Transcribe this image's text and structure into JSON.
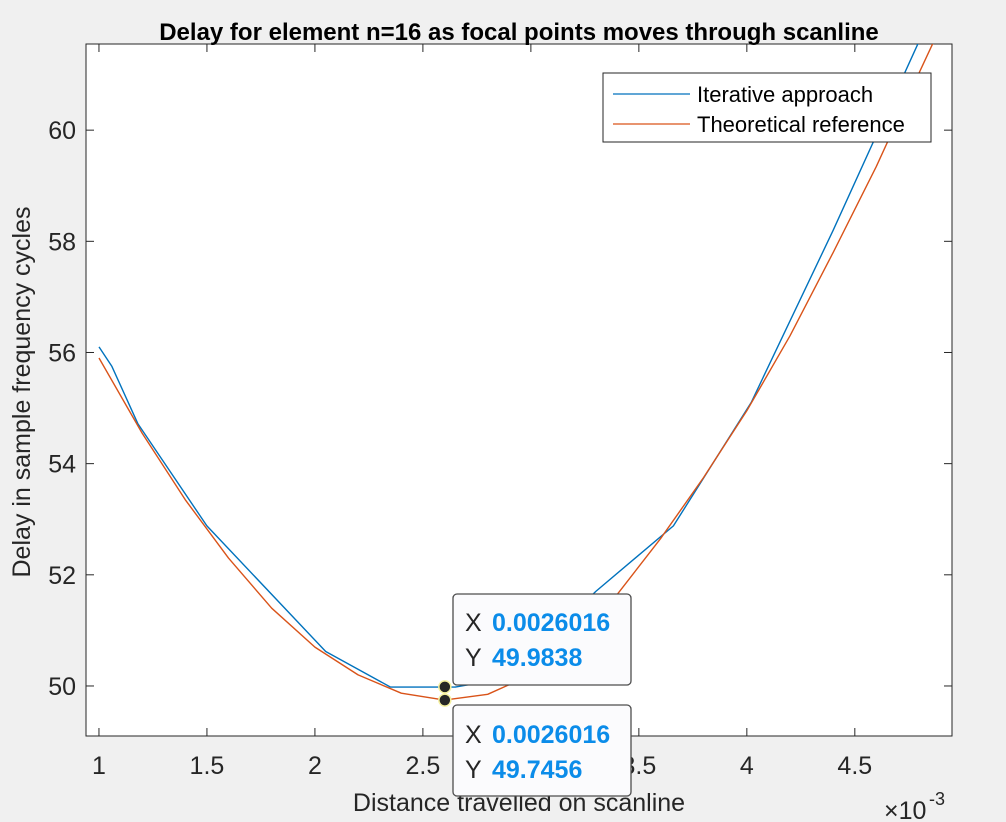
{
  "chart_data": {
    "type": "line",
    "title": "Delay for element n=16 as focal points moves through scanline",
    "xlabel": "Distance travelled on scanline",
    "ylabel": "Delay in sample frequency cycles",
    "x_exponent_label": "×10",
    "x_exponent_power": "-3",
    "xlim": [
      0.00094,
      0.00495
    ],
    "ylim": [
      49.1,
      61.55
    ],
    "xticks": [
      0.001,
      0.0015,
      0.002,
      0.0025,
      0.003,
      0.0035,
      0.004,
      0.0045
    ],
    "xtick_labels": [
      "1",
      "1.5",
      "2",
      "2.5",
      "3",
      "3.5",
      "4",
      "4.5"
    ],
    "yticks": [
      50,
      52,
      54,
      56,
      58,
      60
    ],
    "ytick_labels": [
      "50",
      "52",
      "54",
      "56",
      "58",
      "60"
    ],
    "grid": false,
    "legend_position": "top-right",
    "series": [
      {
        "name": "Iterative approach",
        "color": "#0072bd",
        "x": [
          0.001,
          0.00106,
          0.00118,
          0.0015,
          0.00205,
          0.00235,
          0.00265,
          0.0029,
          0.0033,
          0.00366,
          0.00402,
          0.0044,
          0.00478,
          0.00495
        ],
        "y": [
          56.1,
          55.75,
          54.72,
          52.88,
          50.62,
          49.98,
          49.98,
          50.15,
          51.7,
          52.88,
          55.1,
          58.2,
          61.45,
          62.9
        ]
      },
      {
        "name": "Theoretical reference",
        "color": "#d95319",
        "x": [
          0.001,
          0.0012,
          0.0014,
          0.0016,
          0.0018,
          0.002,
          0.0022,
          0.0024,
          0.0026,
          0.0028,
          0.003,
          0.0032,
          0.0034,
          0.0036,
          0.0038,
          0.004,
          0.0042,
          0.0044,
          0.0046,
          0.0048,
          0.00495
        ],
        "y": [
          55.9,
          54.55,
          53.35,
          52.3,
          51.4,
          50.7,
          50.2,
          49.87,
          49.7457,
          49.85,
          50.2,
          50.82,
          51.65,
          52.65,
          53.75,
          54.95,
          56.3,
          57.8,
          59.35,
          61.05,
          62.3
        ]
      }
    ],
    "datatips": [
      {
        "x": 0.0026016,
        "y": 49.9838,
        "x_key": "X",
        "y_key": "Y",
        "x_text": "0.0026016",
        "y_text": "49.9838",
        "placement": "above"
      },
      {
        "x": 0.0026016,
        "y": 49.7456,
        "x_key": "X",
        "y_key": "Y",
        "x_text": "0.0026016",
        "y_text": "49.7456",
        "placement": "below"
      }
    ]
  }
}
